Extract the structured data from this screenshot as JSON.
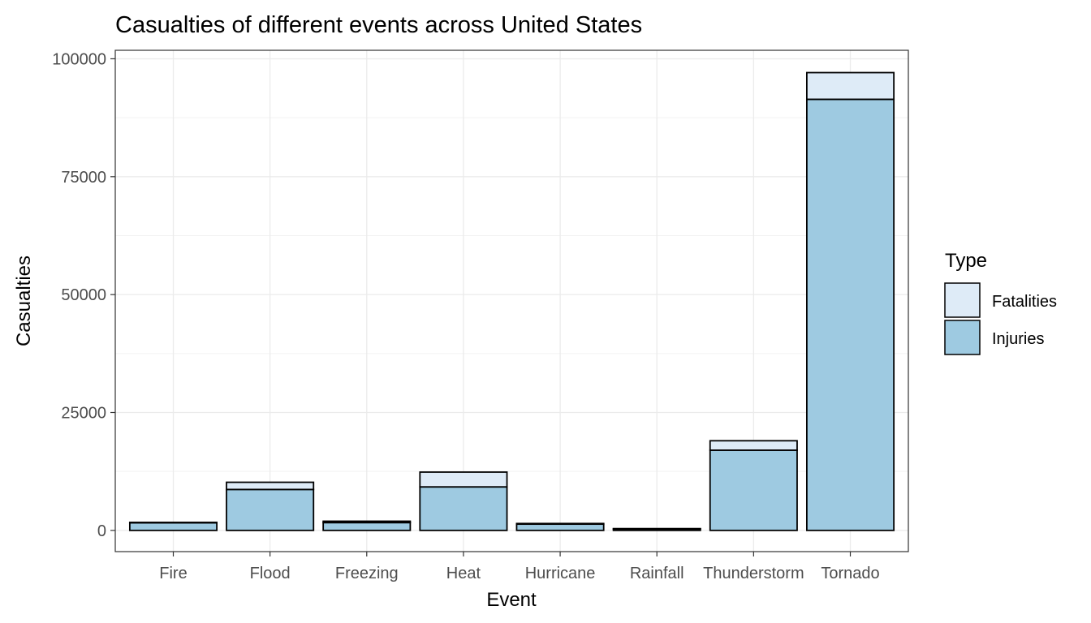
{
  "chart_data": {
    "type": "bar",
    "stacked": true,
    "title": "Casualties of different events across United States",
    "xlabel": "Event",
    "ylabel": "Casualties",
    "categories": [
      "Fire",
      "Flood",
      "Freezing",
      "Heat",
      "Hurricane",
      "Rainfall",
      "Thunderstorm",
      "Tornado"
    ],
    "series": [
      {
        "name": "Injuries",
        "color": "#9ecae1",
        "values": [
          1608,
          8680,
          1650,
          9224,
          1328,
          280,
          17006,
          91407
        ]
      },
      {
        "name": "Fatalities",
        "color": "#deebf7",
        "values": [
          90,
          1524,
          300,
          3138,
          135,
          100,
          2000,
          5661
        ]
      }
    ],
    "ylim": [
      -4500,
      101800
    ],
    "yticks": [
      0,
      25000,
      50000,
      75000,
      100000
    ],
    "ytick_labels": [
      "0",
      "25000",
      "50000",
      "75000",
      "100000"
    ],
    "grid": true,
    "legend": {
      "title": "Type",
      "position": "right",
      "entries": [
        "Fatalities",
        "Injuries"
      ]
    }
  }
}
